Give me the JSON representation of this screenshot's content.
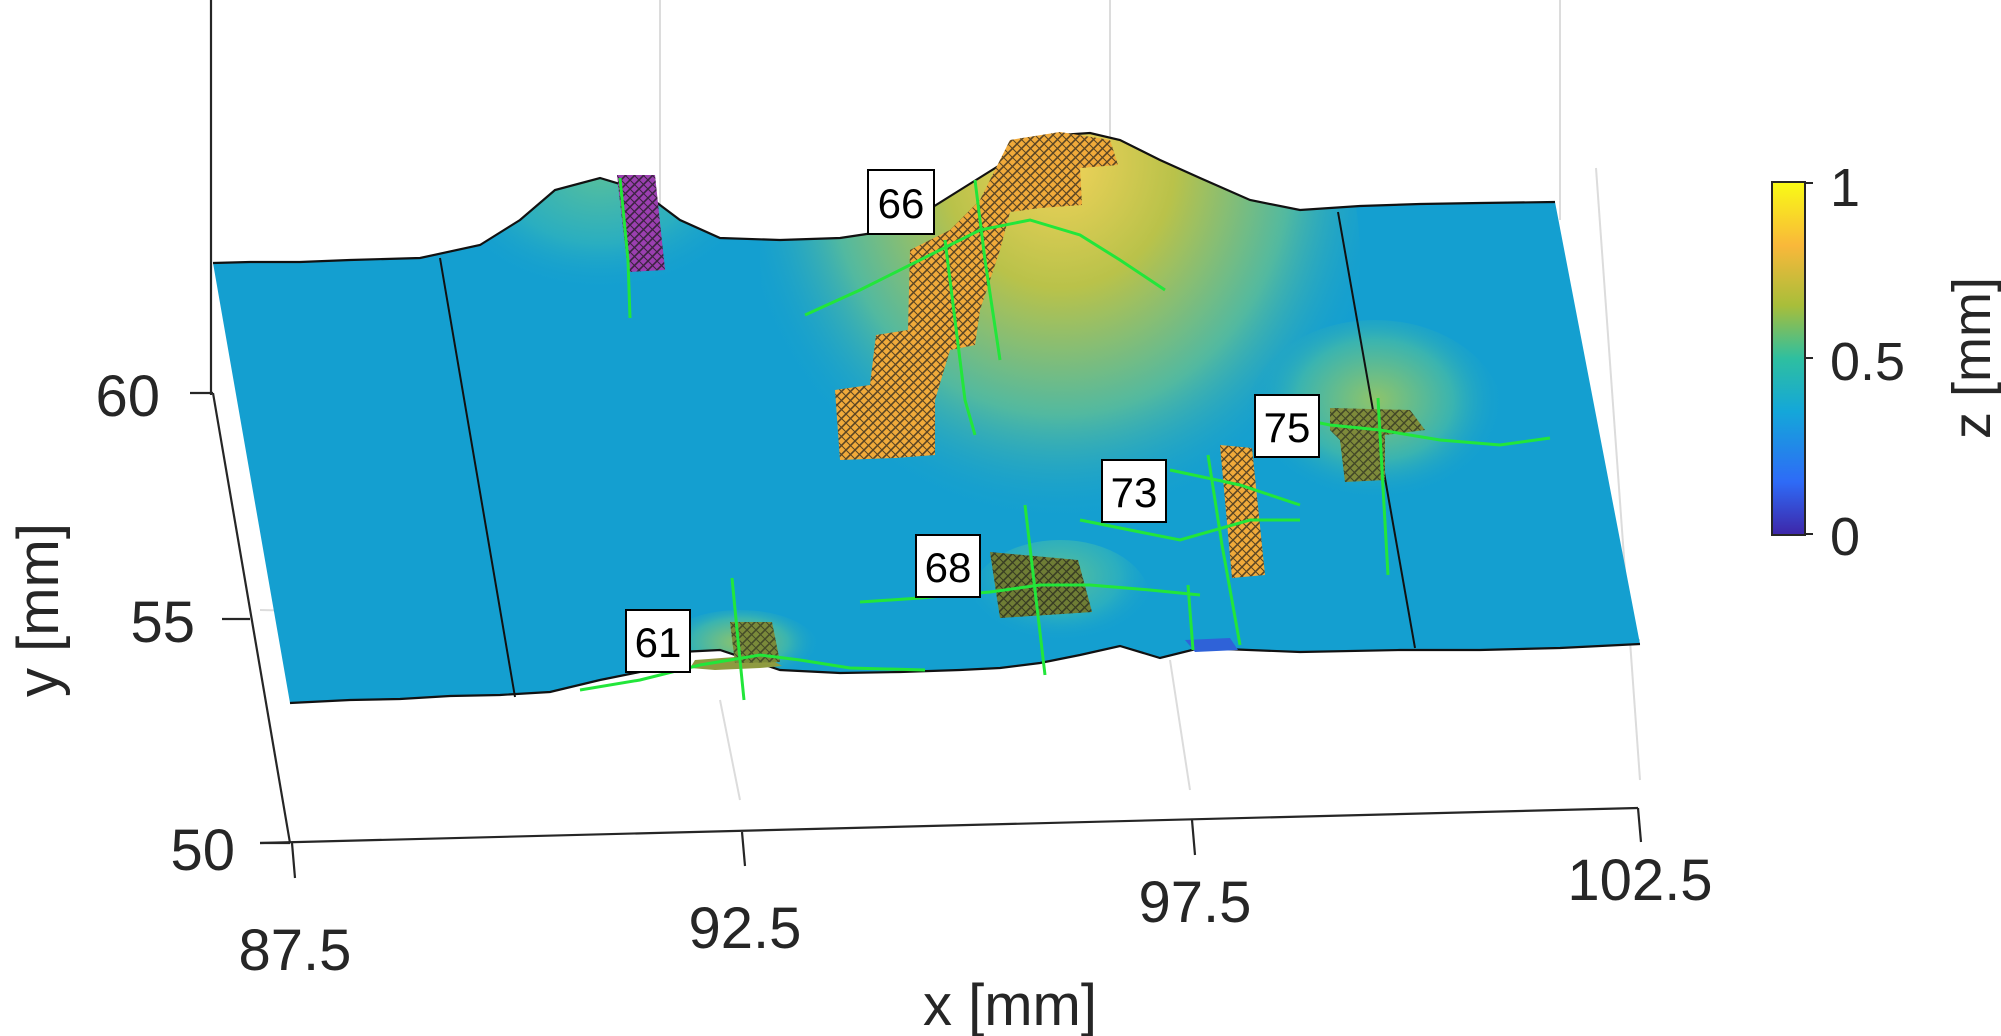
{
  "chart_data": {
    "type": "surface",
    "xlabel": "x [mm]",
    "ylabel": "y [mm]",
    "colorbar_label": "z [mm]",
    "x_ticks": [
      "87.5",
      "92.5",
      "97.5",
      "102.5"
    ],
    "y_ticks": [
      "50",
      "55",
      "60"
    ],
    "colorbar_ticks": [
      "0",
      "0.5",
      "1"
    ],
    "xlim": [
      87.5,
      102.5
    ],
    "ylim": [
      50,
      60
    ],
    "clim": [
      0,
      1
    ],
    "colormap": [
      "#3e26a8",
      "#2e6bf7",
      "#14a7d9",
      "#2ebfa0",
      "#a8be3a",
      "#f9b83a",
      "#f9fb15"
    ],
    "surface_color": "#149fd0",
    "grid": true,
    "colorbar_position": "right",
    "ridges": [
      {
        "name": "",
        "peak_x": 91.5,
        "peak_z": 0.6
      },
      {
        "name": "",
        "peak_x": 96.5,
        "peak_z": 0.95
      }
    ],
    "annotations": [
      "66",
      "75",
      "73",
      "68",
      "61"
    ]
  }
}
